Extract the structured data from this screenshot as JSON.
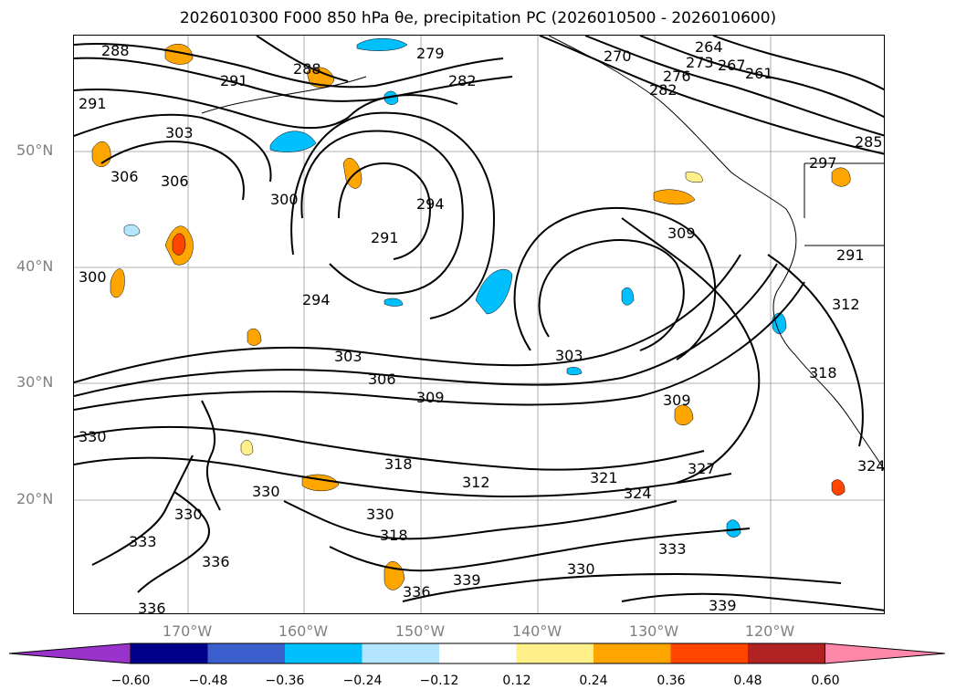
{
  "title": "2026010300 F000 850 hPa θe, precipitation PC (2026010500 - 2026010600)",
  "map": {
    "lat_labels": [
      {
        "text": "50°N",
        "lat": 50
      },
      {
        "text": "40°N",
        "lat": 40
      },
      {
        "text": "30°N",
        "lat": 30
      },
      {
        "text": "20°N",
        "lat": 20
      }
    ],
    "lon_labels": [
      {
        "text": "170°W",
        "lon": -170
      },
      {
        "text": "160°W",
        "lon": -160
      },
      {
        "text": "150°W",
        "lon": -150
      },
      {
        "text": "140°W",
        "lon": -140
      },
      {
        "text": "130°W",
        "lon": -130
      },
      {
        "text": "120°W",
        "lon": -120
      }
    ],
    "contour_labels": [
      "288",
      "279",
      "282",
      "270",
      "264",
      "267",
      "273",
      "276",
      "261",
      "282",
      "291",
      "291",
      "291",
      "285",
      "288",
      "303",
      "297",
      "306",
      "306",
      "309",
      "300",
      "300",
      "294",
      "291",
      "294",
      "303",
      "306",
      "309",
      "303",
      "312",
      "318",
      "309",
      "330",
      "330",
      "312",
      "318",
      "321",
      "327",
      "324",
      "330",
      "330",
      "336",
      "333",
      "330",
      "333",
      "336",
      "339",
      "336",
      "339",
      "324",
      "318"
    ],
    "precip_colors": {
      "neg_strong": "#00bfff",
      "neg_light": "#b3e5fc",
      "pos_light": "#fff08a",
      "pos_mid": "#ffa500",
      "pos_strong": "#ff4500",
      "pos_dark": "#b22222"
    }
  },
  "colorbar": {
    "ticks": [
      "−0.60",
      "−0.48",
      "−0.36",
      "−0.24",
      "−0.12",
      "0.12",
      "0.24",
      "0.36",
      "0.48",
      "0.60"
    ],
    "colors": [
      "#9933cc",
      "#00008b",
      "#3a5fcd",
      "#00bfff",
      "#b3e5fc",
      "#ffffff",
      "#fff08a",
      "#ffa500",
      "#ff4500",
      "#b22222",
      "#ff88aa"
    ]
  }
}
